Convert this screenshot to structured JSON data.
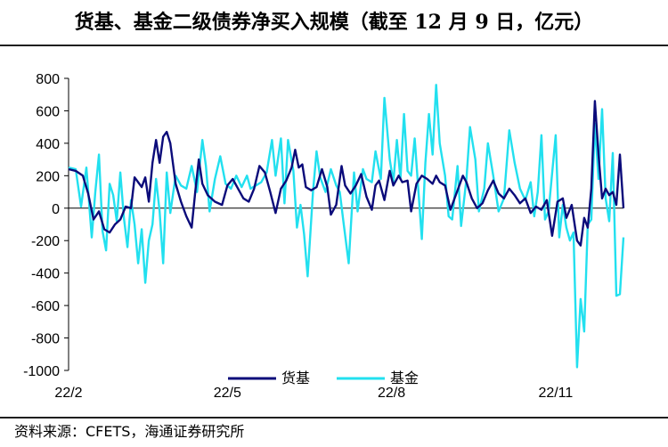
{
  "title": "货基、基金二级债券净买入规模（截至 12 月 9 日，亿元）",
  "source": "资料来源：CFETS，海通证券研究所",
  "colors": {
    "series_0": "#0b0b7a",
    "series_1": "#22e0ef",
    "axis": "#000000"
  },
  "chart_data": {
    "type": "line",
    "title": "货基、基金二级债券净买入规模（截至 12 月 9 日，亿元）",
    "x_range": [
      "2022-02-01",
      "2022-12-09"
    ],
    "x_ticks": [
      {
        "date": "2022-02-01",
        "label": "22/2"
      },
      {
        "date": "2022-05-01",
        "label": "22/5"
      },
      {
        "date": "2022-08-01",
        "label": "22/8"
      },
      {
        "date": "2022-11-01",
        "label": "22/11"
      }
    ],
    "ylim": [
      -1000,
      800
    ],
    "y_ticks": [
      800,
      600,
      400,
      200,
      0,
      -200,
      -400,
      -600,
      -800,
      -1000
    ],
    "grid": false,
    "legend_position": "bottom-center",
    "series": [
      {
        "name": "货基",
        "color": "#0b0b7a",
        "points": [
          [
            "2022-02-01",
            240
          ],
          [
            "2022-02-05",
            230
          ],
          [
            "2022-02-09",
            200
          ],
          [
            "2022-02-12",
            90
          ],
          [
            "2022-02-15",
            -70
          ],
          [
            "2022-02-18",
            -20
          ],
          [
            "2022-02-21",
            -130
          ],
          [
            "2022-02-24",
            -150
          ],
          [
            "2022-02-27",
            -100
          ],
          [
            "2022-03-02",
            -70
          ],
          [
            "2022-03-05",
            10
          ],
          [
            "2022-03-08",
            0
          ],
          [
            "2022-03-10",
            190
          ],
          [
            "2022-03-12",
            160
          ],
          [
            "2022-03-14",
            130
          ],
          [
            "2022-03-16",
            190
          ],
          [
            "2022-03-18",
            40
          ],
          [
            "2022-03-20",
            280
          ],
          [
            "2022-03-22",
            420
          ],
          [
            "2022-03-24",
            280
          ],
          [
            "2022-03-26",
            440
          ],
          [
            "2022-03-28",
            470
          ],
          [
            "2022-03-30",
            400
          ],
          [
            "2022-04-02",
            150
          ],
          [
            "2022-04-05",
            40
          ],
          [
            "2022-04-08",
            -50
          ],
          [
            "2022-04-11",
            -120
          ],
          [
            "2022-04-13",
            100
          ],
          [
            "2022-04-15",
            300
          ],
          [
            "2022-04-17",
            150
          ],
          [
            "2022-04-20",
            80
          ],
          [
            "2022-04-24",
            40
          ],
          [
            "2022-04-28",
            20
          ],
          [
            "2022-05-01",
            140
          ],
          [
            "2022-05-04",
            180
          ],
          [
            "2022-05-07",
            120
          ],
          [
            "2022-05-10",
            60
          ],
          [
            "2022-05-13",
            40
          ],
          [
            "2022-05-16",
            120
          ],
          [
            "2022-05-19",
            260
          ],
          [
            "2022-05-22",
            220
          ],
          [
            "2022-05-25",
            100
          ],
          [
            "2022-05-28",
            -30
          ],
          [
            "2022-05-31",
            120
          ],
          [
            "2022-06-03",
            170
          ],
          [
            "2022-06-06",
            250
          ],
          [
            "2022-06-08",
            360
          ],
          [
            "2022-06-10",
            250
          ],
          [
            "2022-06-12",
            270
          ],
          [
            "2022-06-14",
            130
          ],
          [
            "2022-06-17",
            110
          ],
          [
            "2022-06-20",
            130
          ],
          [
            "2022-06-23",
            240
          ],
          [
            "2022-06-26",
            130
          ],
          [
            "2022-06-28",
            -40
          ],
          [
            "2022-07-01",
            20
          ],
          [
            "2022-07-04",
            260
          ],
          [
            "2022-07-06",
            140
          ],
          [
            "2022-07-09",
            90
          ],
          [
            "2022-07-12",
            140
          ],
          [
            "2022-07-15",
            210
          ],
          [
            "2022-07-18",
            70
          ],
          [
            "2022-07-21",
            -10
          ],
          [
            "2022-07-23",
            140
          ],
          [
            "2022-07-25",
            170
          ],
          [
            "2022-07-28",
            50
          ],
          [
            "2022-07-31",
            230
          ],
          [
            "2022-08-02",
            140
          ],
          [
            "2022-08-05",
            200
          ],
          [
            "2022-08-07",
            160
          ],
          [
            "2022-08-10",
            170
          ],
          [
            "2022-08-12",
            -20
          ],
          [
            "2022-08-15",
            150
          ],
          [
            "2022-08-18",
            200
          ],
          [
            "2022-08-21",
            180
          ],
          [
            "2022-08-24",
            150
          ],
          [
            "2022-08-26",
            200
          ],
          [
            "2022-08-28",
            160
          ],
          [
            "2022-08-31",
            140
          ],
          [
            "2022-09-03",
            -10
          ],
          [
            "2022-09-06",
            80
          ],
          [
            "2022-09-08",
            140
          ],
          [
            "2022-09-10",
            200
          ],
          [
            "2022-09-12",
            160
          ],
          [
            "2022-09-15",
            60
          ],
          [
            "2022-09-18",
            0
          ],
          [
            "2022-09-21",
            30
          ],
          [
            "2022-09-24",
            110
          ],
          [
            "2022-09-27",
            170
          ],
          [
            "2022-09-30",
            90
          ],
          [
            "2022-10-03",
            60
          ],
          [
            "2022-10-06",
            120
          ],
          [
            "2022-10-09",
            80
          ],
          [
            "2022-10-12",
            30
          ],
          [
            "2022-10-15",
            60
          ],
          [
            "2022-10-18",
            -30
          ],
          [
            "2022-10-21",
            10
          ],
          [
            "2022-10-24",
            -10
          ],
          [
            "2022-10-27",
            50
          ],
          [
            "2022-10-30",
            -170
          ],
          [
            "2022-11-02",
            40
          ],
          [
            "2022-11-05",
            60
          ],
          [
            "2022-11-07",
            -60
          ],
          [
            "2022-11-10",
            20
          ],
          [
            "2022-11-13",
            -200
          ],
          [
            "2022-11-15",
            -230
          ],
          [
            "2022-11-17",
            -60
          ],
          [
            "2022-11-19",
            -120
          ],
          [
            "2022-11-21",
            120
          ],
          [
            "2022-11-23",
            660
          ],
          [
            "2022-11-25",
            330
          ],
          [
            "2022-11-27",
            60
          ],
          [
            "2022-11-29",
            120
          ],
          [
            "2022-12-01",
            80
          ],
          [
            "2022-12-03",
            100
          ],
          [
            "2022-12-05",
            20
          ],
          [
            "2022-12-07",
            330
          ],
          [
            "2022-12-09",
            0
          ]
        ]
      },
      {
        "name": "基金",
        "color": "#22e0ef",
        "points": [
          [
            "2022-02-01",
            250
          ],
          [
            "2022-02-05",
            240
          ],
          [
            "2022-02-08",
            10
          ],
          [
            "2022-02-11",
            250
          ],
          [
            "2022-02-14",
            -180
          ],
          [
            "2022-02-16",
            100
          ],
          [
            "2022-02-18",
            330
          ],
          [
            "2022-02-20",
            -140
          ],
          [
            "2022-02-22",
            -260
          ],
          [
            "2022-02-24",
            150
          ],
          [
            "2022-02-26",
            80
          ],
          [
            "2022-02-28",
            -80
          ],
          [
            "2022-03-02",
            220
          ],
          [
            "2022-03-04",
            -60
          ],
          [
            "2022-03-06",
            -240
          ],
          [
            "2022-03-08",
            50
          ],
          [
            "2022-03-10",
            -100
          ],
          [
            "2022-03-12",
            -340
          ],
          [
            "2022-03-14",
            -130
          ],
          [
            "2022-03-16",
            -460
          ],
          [
            "2022-03-18",
            -200
          ],
          [
            "2022-03-20",
            -100
          ],
          [
            "2022-03-22",
            180
          ],
          [
            "2022-03-24",
            -20
          ],
          [
            "2022-03-26",
            -340
          ],
          [
            "2022-03-28",
            220
          ],
          [
            "2022-03-30",
            -30
          ],
          [
            "2022-04-02",
            200
          ],
          [
            "2022-04-05",
            140
          ],
          [
            "2022-04-08",
            120
          ],
          [
            "2022-04-11",
            260
          ],
          [
            "2022-04-14",
            100
          ],
          [
            "2022-04-17",
            420
          ],
          [
            "2022-04-19",
            260
          ],
          [
            "2022-04-21",
            -20
          ],
          [
            "2022-04-24",
            180
          ],
          [
            "2022-04-27",
            320
          ],
          [
            "2022-04-30",
            150
          ],
          [
            "2022-05-03",
            120
          ],
          [
            "2022-05-06",
            200
          ],
          [
            "2022-05-09",
            130
          ],
          [
            "2022-05-12",
            200
          ],
          [
            "2022-05-14",
            120
          ],
          [
            "2022-05-17",
            140
          ],
          [
            "2022-05-20",
            160
          ],
          [
            "2022-05-23",
            220
          ],
          [
            "2022-05-26",
            420
          ],
          [
            "2022-05-28",
            200
          ],
          [
            "2022-05-31",
            430
          ],
          [
            "2022-06-02",
            30
          ],
          [
            "2022-06-04",
            420
          ],
          [
            "2022-06-07",
            230
          ],
          [
            "2022-06-09",
            -120
          ],
          [
            "2022-06-11",
            20
          ],
          [
            "2022-06-13",
            -160
          ],
          [
            "2022-06-15",
            -420
          ],
          [
            "2022-06-18",
            100
          ],
          [
            "2022-06-20",
            350
          ],
          [
            "2022-06-22",
            190
          ],
          [
            "2022-06-25",
            100
          ],
          [
            "2022-06-28",
            240
          ],
          [
            "2022-07-01",
            140
          ],
          [
            "2022-07-03",
            100
          ],
          [
            "2022-07-05",
            -80
          ],
          [
            "2022-07-08",
            -340
          ],
          [
            "2022-07-11",
            220
          ],
          [
            "2022-07-13",
            -20
          ],
          [
            "2022-07-16",
            240
          ],
          [
            "2022-07-18",
            180
          ],
          [
            "2022-07-21",
            160
          ],
          [
            "2022-07-23",
            350
          ],
          [
            "2022-07-26",
            180
          ],
          [
            "2022-07-28",
            680
          ],
          [
            "2022-07-31",
            300
          ],
          [
            "2022-08-02",
            160
          ],
          [
            "2022-08-04",
            420
          ],
          [
            "2022-08-06",
            180
          ],
          [
            "2022-08-08",
            580
          ],
          [
            "2022-08-10",
            230
          ],
          [
            "2022-08-12",
            200
          ],
          [
            "2022-08-14",
            430
          ],
          [
            "2022-08-16",
            120
          ],
          [
            "2022-08-18",
            -190
          ],
          [
            "2022-08-20",
            280
          ],
          [
            "2022-08-22",
            580
          ],
          [
            "2022-08-24",
            330
          ],
          [
            "2022-08-26",
            760
          ],
          [
            "2022-08-28",
            400
          ],
          [
            "2022-08-31",
            200
          ],
          [
            "2022-09-02",
            -50
          ],
          [
            "2022-09-04",
            -70
          ],
          [
            "2022-09-07",
            260
          ],
          [
            "2022-09-09",
            -110
          ],
          [
            "2022-09-12",
            180
          ],
          [
            "2022-09-14",
            500
          ],
          [
            "2022-09-17",
            300
          ],
          [
            "2022-09-19",
            -20
          ],
          [
            "2022-09-22",
            120
          ],
          [
            "2022-09-24",
            400
          ],
          [
            "2022-09-27",
            200
          ],
          [
            "2022-09-30",
            -20
          ],
          [
            "2022-10-03",
            60
          ],
          [
            "2022-10-06",
            480
          ],
          [
            "2022-10-09",
            280
          ],
          [
            "2022-10-12",
            120
          ],
          [
            "2022-10-15",
            50
          ],
          [
            "2022-10-18",
            160
          ],
          [
            "2022-10-20",
            -50
          ],
          [
            "2022-10-22",
            100
          ],
          [
            "2022-10-24",
            450
          ],
          [
            "2022-10-26",
            -70
          ],
          [
            "2022-10-28",
            -20
          ],
          [
            "2022-11-01",
            450
          ],
          [
            "2022-11-03",
            -180
          ],
          [
            "2022-11-05",
            20
          ],
          [
            "2022-11-07",
            -120
          ],
          [
            "2022-11-09",
            -200
          ],
          [
            "2022-11-11",
            -150
          ],
          [
            "2022-11-13",
            -980
          ],
          [
            "2022-11-15",
            -560
          ],
          [
            "2022-11-17",
            -760
          ],
          [
            "2022-11-19",
            -100
          ],
          [
            "2022-11-21",
            -70
          ],
          [
            "2022-11-23",
            520
          ],
          [
            "2022-11-25",
            180
          ],
          [
            "2022-11-27",
            610
          ],
          [
            "2022-11-29",
            60
          ],
          [
            "2022-12-01",
            -80
          ],
          [
            "2022-12-03",
            340
          ],
          [
            "2022-12-05",
            -540
          ],
          [
            "2022-12-07",
            -530
          ],
          [
            "2022-12-09",
            -180
          ]
        ]
      }
    ]
  }
}
